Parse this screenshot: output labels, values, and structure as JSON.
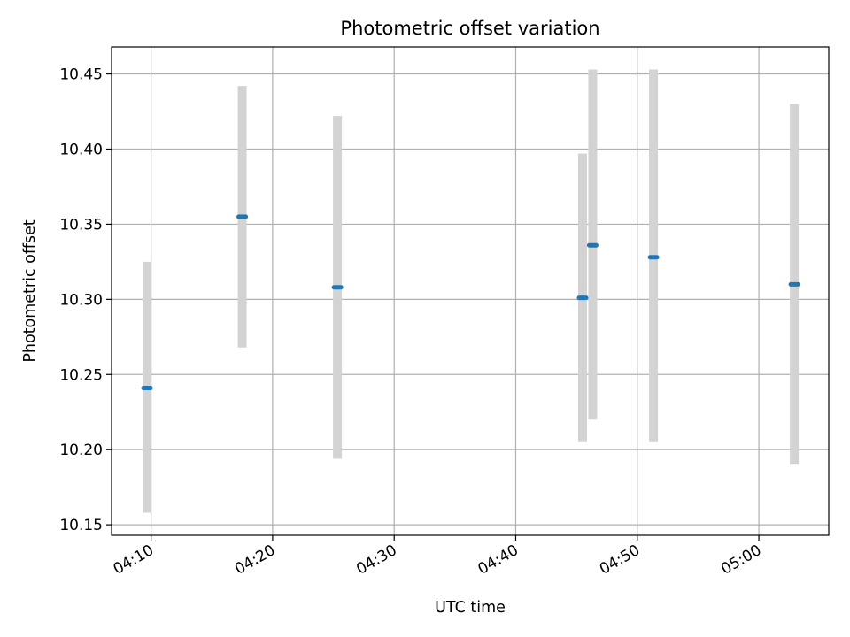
{
  "chart_data": {
    "type": "scatter",
    "title": "Photometric offset variation",
    "xlabel": "UTC time",
    "ylabel": "Photometric offset",
    "x_axis_kind": "time",
    "xlim": [
      "04:06:45",
      "05:05:45"
    ],
    "ylim": [
      10.143,
      10.468
    ],
    "x_ticks": [
      "04:10",
      "04:20",
      "04:30",
      "04:40",
      "04:50",
      "05:00"
    ],
    "y_ticks": [
      "10.15",
      "10.20",
      "10.25",
      "10.30",
      "10.35",
      "10.40",
      "10.45"
    ],
    "grid": true,
    "series": [
      {
        "marker_color": "#1f77b4",
        "errorbar_color": "#d3d3d3",
        "points": [
          {
            "x": "04:09:40",
            "y": 10.241,
            "yerr_low": 10.158,
            "yerr_high": 10.325
          },
          {
            "x": "04:17:30",
            "y": 10.355,
            "yerr_low": 10.268,
            "yerr_high": 10.442
          },
          {
            "x": "04:25:20",
            "y": 10.308,
            "yerr_low": 10.194,
            "yerr_high": 10.422
          },
          {
            "x": "04:45:30",
            "y": 10.301,
            "yerr_low": 10.205,
            "yerr_high": 10.397
          },
          {
            "x": "04:46:20",
            "y": 10.336,
            "yerr_low": 10.22,
            "yerr_high": 10.453
          },
          {
            "x": "04:51:20",
            "y": 10.328,
            "yerr_low": 10.205,
            "yerr_high": 10.453
          },
          {
            "x": "05:02:55",
            "y": 10.31,
            "yerr_low": 10.19,
            "yerr_high": 10.43
          }
        ]
      }
    ]
  }
}
